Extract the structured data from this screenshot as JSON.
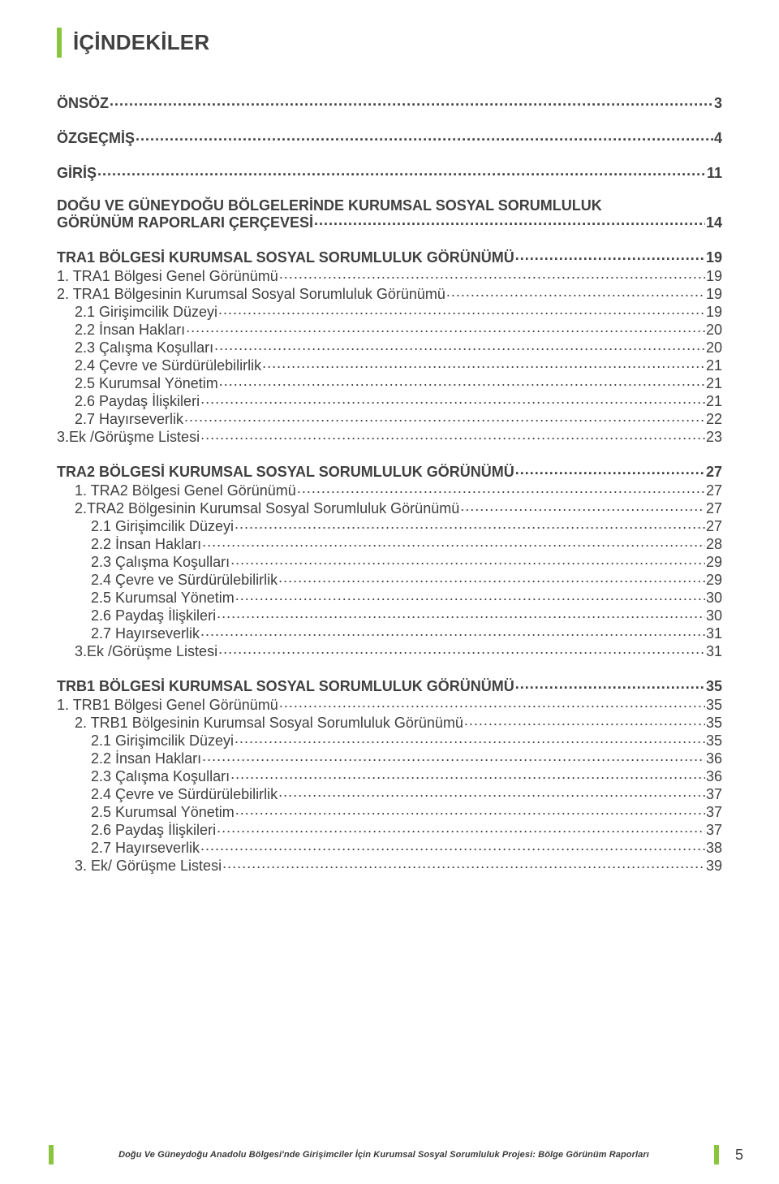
{
  "colors": {
    "accent": "#8bc540",
    "text": "#404041",
    "background": "#ffffff"
  },
  "typography": {
    "body_pt": 18,
    "title_pt": 26,
    "footer_pt": 11
  },
  "page_title": "İÇİNDEKİLER",
  "toc": [
    {
      "label": "ÖNSÖZ",
      "page": "3",
      "level": "main",
      "first": true
    },
    {
      "label": "ÖZGEÇMİŞ",
      "page": "4",
      "level": "main"
    },
    {
      "label": "GİRİŞ",
      "page": "11",
      "level": "main"
    },
    {
      "label": "DOĞU VE GÜNEYDOĞU BÖLGELERİNDE KURUMSAL SOSYAL SORUMLULUK",
      "level": "section-2line-top"
    },
    {
      "label": "GÖRÜNÜM RAPORLARI ÇERÇEVESİ",
      "page": "14",
      "level": "section-2line-bottom"
    },
    {
      "label": "TRA1 BÖLGESİ KURUMSAL SOSYAL SORUMLULUK GÖRÜNÜMÜ",
      "page": "19",
      "level": "section"
    },
    {
      "label": "1. TRA1 Bölgesi Genel Görünümü",
      "page": "19",
      "level": "h1"
    },
    {
      "label": "2. TRA1 Bölgesinin Kurumsal Sosyal Sorumluluk Görünümü",
      "page": "19",
      "level": "h1"
    },
    {
      "label": "2.1 Girişimcilik Düzeyi",
      "page": "19",
      "level": "h2"
    },
    {
      "label": "2.2 İnsan Hakları",
      "page": "20",
      "level": "h2"
    },
    {
      "label": "2.3 Çalışma Koşulları",
      "page": "20",
      "level": "h2"
    },
    {
      "label": "2.4 Çevre ve Sürdürülebilirlik",
      "page": "21",
      "level": "h2"
    },
    {
      "label": "2.5 Kurumsal Yönetim",
      "page": "21",
      "level": "h2"
    },
    {
      "label": "2.6 Paydaş İlişkileri",
      "page": "21",
      "level": "h2"
    },
    {
      "label": "2.7 Hayırseverlik",
      "page": "22",
      "level": "h2"
    },
    {
      "label": "3.Ek /Görüşme Listesi",
      "page": "23",
      "level": "h1"
    },
    {
      "label": "TRA2 BÖLGESİ KURUMSAL SOSYAL SORUMLULUK GÖRÜNÜMÜ",
      "page": "27",
      "level": "section"
    },
    {
      "label": "1. TRA2 Bölgesi Genel Görünümü",
      "page": "27",
      "level": "h2b"
    },
    {
      "label": "2.TRA2 Bölgesinin Kurumsal Sosyal Sorumluluk Görünümü",
      "page": "27",
      "level": "h2b"
    },
    {
      "label": "2.1 Girişimcilik Düzeyi",
      "page": "27",
      "level": "h3"
    },
    {
      "label": "2.2 İnsan Hakları",
      "page": "28",
      "level": "h3"
    },
    {
      "label": "2.3 Çalışma Koşulları",
      "page": "29",
      "level": "h3"
    },
    {
      "label": "2.4 Çevre ve Sürdürülebilirlik",
      "page": "29",
      "level": "h3"
    },
    {
      "label": "2.5 Kurumsal Yönetim",
      "page": "30",
      "level": "h3"
    },
    {
      "label": "2.6 Paydaş İlişkileri",
      "page": "30",
      "level": "h3"
    },
    {
      "label": "2.7 Hayırseverlik",
      "page": "31",
      "level": "h3"
    },
    {
      "label": "3.Ek /Görüşme Listesi",
      "page": "31",
      "level": "h2b"
    },
    {
      "label": "TRB1 BÖLGESİ KURUMSAL SOSYAL SORUMLULUK GÖRÜNÜMÜ",
      "page": "35",
      "level": "section"
    },
    {
      "label": "1. TRB1 Bölgesi Genel Görünümü",
      "page": "35",
      "level": "h1"
    },
    {
      "label": "2. TRB1 Bölgesinin Kurumsal Sosyal Sorumluluk Görünümü",
      "page": "35",
      "level": "h2b"
    },
    {
      "label": "2.1 Girişimcilik Düzeyi",
      "page": "35",
      "level": "h3"
    },
    {
      "label": "2.2 İnsan Hakları",
      "page": "36",
      "level": "h3"
    },
    {
      "label": "2.3 Çalışma Koşulları",
      "page": "36",
      "level": "h3"
    },
    {
      "label": "2.4 Çevre ve Sürdürülebilirlik",
      "page": "37",
      "level": "h3"
    },
    {
      "label": "2.5 Kurumsal Yönetim",
      "page": "37",
      "level": "h3"
    },
    {
      "label": "2.6 Paydaş İlişkileri",
      "page": "37",
      "level": "h3"
    },
    {
      "label": "2.7 Hayırseverlik",
      "page": "38",
      "level": "h3"
    },
    {
      "label": "3. Ek/ Görüşme Listesi",
      "page": "39",
      "level": "h2b"
    }
  ],
  "footer": {
    "text": "Doğu Ve Güneydoğu Anadolu Bölgesi'nde Girişimciler İçin Kurumsal Sosyal Sorumluluk Projesi: Bölge Görünüm Raporları",
    "page_number": "5"
  }
}
